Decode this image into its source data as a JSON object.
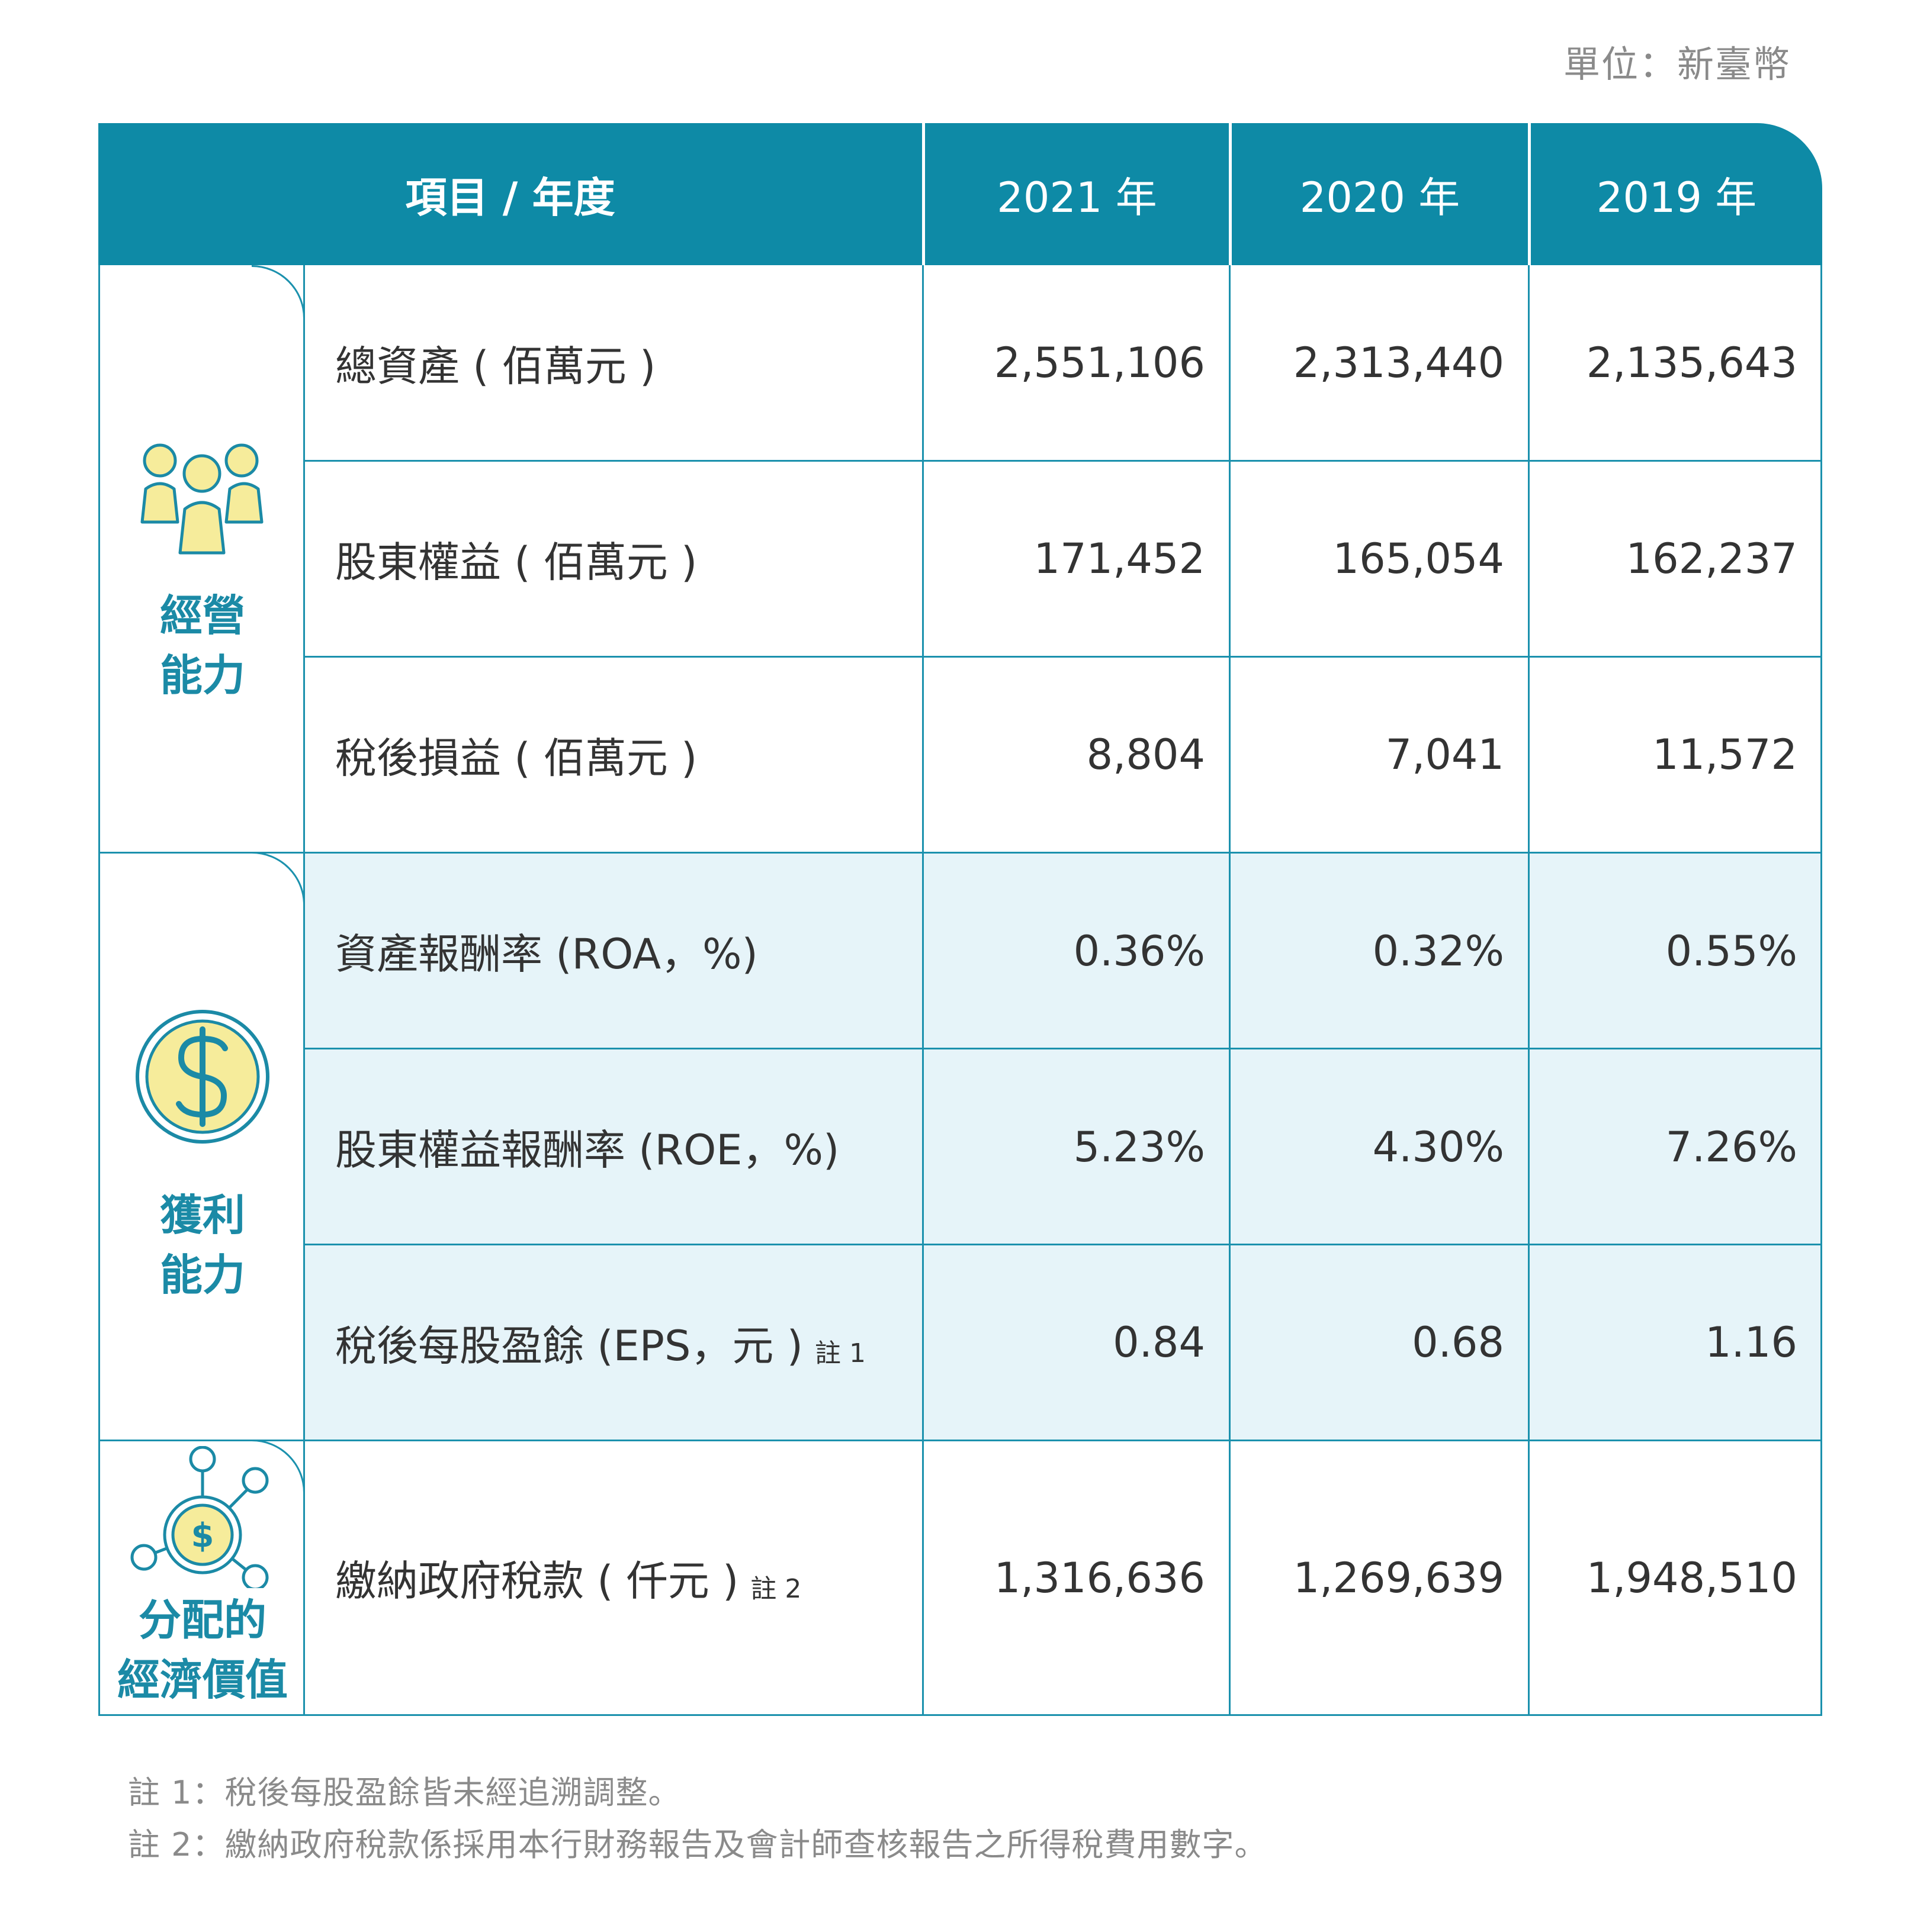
{
  "unit": "單位：新臺幣",
  "header": {
    "item_year": "項目 / 年度",
    "years": [
      "2021 年",
      "2020 年",
      "2019 年"
    ]
  },
  "categories": [
    {
      "label_line1": "經營",
      "label_line2": "能力",
      "icon": "people-icon"
    },
    {
      "label_line1": "獲利",
      "label_line2": "能力",
      "icon": "dollar-coin-icon"
    },
    {
      "label_line1": "分配的",
      "label_line2": "經濟價值",
      "icon": "network-dollar-icon"
    }
  ],
  "rows": [
    {
      "item": "總資產 ( 佰萬元 )",
      "note": "",
      "values": [
        "2,551,106",
        "2,313,440",
        "2,135,643"
      ]
    },
    {
      "item": "股東權益 ( 佰萬元 )",
      "note": "",
      "values": [
        "171,452",
        "165,054",
        "162,237"
      ]
    },
    {
      "item": "稅後損益 ( 佰萬元 )",
      "note": "",
      "values": [
        "8,804",
        "7,041",
        "11,572"
      ]
    },
    {
      "item": "資產報酬率 (ROA，%)",
      "note": "",
      "values": [
        "0.36%",
        "0.32%",
        "0.55%"
      ]
    },
    {
      "item": "股東權益報酬率 (ROE，%)",
      "note": "",
      "values": [
        "5.23%",
        "4.30%",
        "7.26%"
      ]
    },
    {
      "item": "稅後每股盈餘 (EPS，元 )",
      "note": "註 1",
      "values": [
        "0.84",
        "0.68",
        "1.16"
      ]
    },
    {
      "item": "繳納政府稅款 ( 仟元 )",
      "note": "註 2",
      "values": [
        "1,316,636",
        "1,269,639",
        "1,948,510"
      ]
    }
  ],
  "footnotes": [
    "註 1：稅後每股盈餘皆未經追溯調整。",
    "註 2：繳納政府稅款係採用本行財務報告及會計師查核報告之所得稅費用數字。"
  ],
  "colors": {
    "header_bg": "#0e8aa6",
    "border": "#1b91ad",
    "shade": "#e6f4f9",
    "icon_fill": "#f6ec9b",
    "icon_stroke": "#1b8aa6"
  }
}
